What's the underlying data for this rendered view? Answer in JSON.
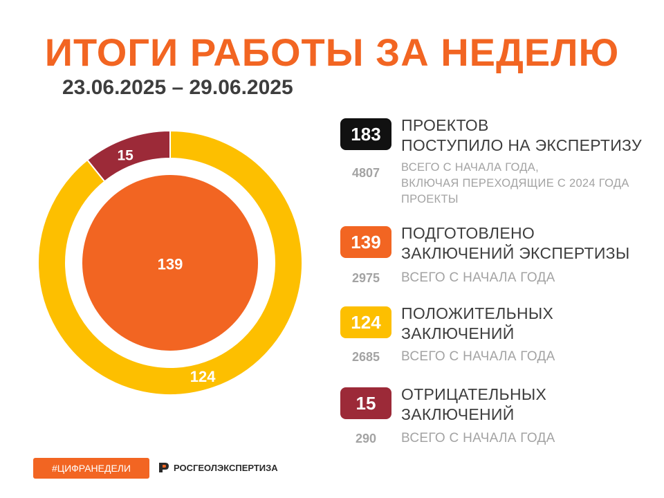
{
  "title": "ИТОГИ РАБОТЫ ЗА НЕДЕЛЮ",
  "period": "23.06.2025 – 29.06.2025",
  "colors": {
    "accent": "#f26522",
    "yellow": "#fdbf00",
    "red": "#9c2a38",
    "black": "#111111",
    "text": "#3d3d3d",
    "muted": "#a3a3a3"
  },
  "chart_data": {
    "type": "pie",
    "inner_value": 139,
    "outer_ring": [
      {
        "label": "15",
        "value": 15,
        "color": "#9c2a38"
      },
      {
        "label": "124",
        "value": 124,
        "color": "#fdbf00"
      }
    ],
    "center_label": "139"
  },
  "stats": [
    {
      "value": "183",
      "color": "#111111",
      "label_lines": [
        "ПРОЕКТОВ",
        "ПОСТУПИЛО НА ЭКСПЕРТИЗУ"
      ],
      "ytd_value": "4807",
      "ytd_lines": [
        "ВСЕГО С НАЧАЛА ГОДА,",
        "ВКЛЮЧАЯ ПЕРЕХОДЯЩИЕ С 2024 ГОДА",
        "ПРОЕКТЫ"
      ]
    },
    {
      "value": "139",
      "color": "#f26522",
      "label_lines": [
        "ПОДГОТОВЛЕНО",
        "ЗАКЛЮЧЕНИЙ ЭКСПЕРТИЗЫ"
      ],
      "ytd_value": "2975",
      "ytd_lines": [
        "ВСЕГО С НАЧАЛА ГОДА"
      ]
    },
    {
      "value": "124",
      "color": "#fdbf00",
      "label_lines": [
        "ПОЛОЖИТЕЛЬНЫХ",
        "ЗАКЛЮЧЕНИЙ"
      ],
      "ytd_value": "2685",
      "ytd_lines": [
        "ВСЕГО С НАЧАЛА ГОДА"
      ]
    },
    {
      "value": "15",
      "color": "#9c2a38",
      "label_lines": [
        "ОТРИЦАТЕЛЬНЫХ",
        "ЗАКЛЮЧЕНИЙ"
      ],
      "ytd_value": "290",
      "ytd_lines": [
        "ВСЕГО С НАЧАЛА ГОДА"
      ]
    }
  ],
  "footer": {
    "hashtag": "#ЦИФРАНЕДЕЛИ",
    "logo_text": "РОСГЕОЛЭКСПЕРТИЗА",
    "logo_icon": "rosgeol-logo-icon"
  }
}
